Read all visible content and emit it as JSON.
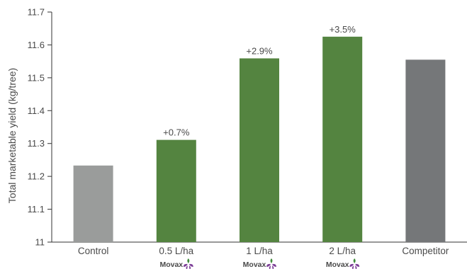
{
  "chart_data": {
    "type": "bar",
    "title": "",
    "xlabel": "",
    "ylabel": "Total marketable yield (kg/tree)",
    "ylim": [
      11,
      11.7
    ],
    "yticks": [
      "11",
      "11.1",
      "11.2",
      "11.3",
      "11.4",
      "11.5",
      "11.6",
      "11.7"
    ],
    "categories": [
      "Control",
      "0.5 L/ha",
      "1 L/ha",
      "2 L/ha",
      "Competitor"
    ],
    "values": [
      11.233,
      11.311,
      11.559,
      11.625,
      11.555
    ],
    "data_labels": [
      "",
      "+0.7%",
      "+2.9%",
      "+3.5%",
      ""
    ],
    "bar_colors": [
      "#9a9c9b",
      "#548440",
      "#548440",
      "#548440",
      "#757779"
    ],
    "brand_labels": [
      "",
      "Movax",
      "Movax",
      "Movax",
      ""
    ],
    "grid": false,
    "legend": "none"
  },
  "icons": {
    "brand": "movax-leaf-logo-icon"
  }
}
